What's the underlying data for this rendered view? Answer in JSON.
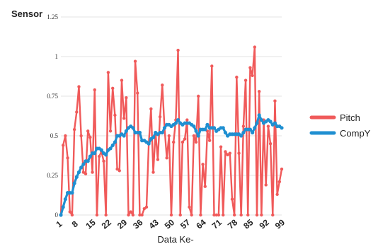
{
  "chart_data": {
    "type": "line",
    "title": "",
    "ylabel": "Sensor",
    "xlabel": "Data Ke-",
    "ylim": [
      0,
      1.25
    ],
    "yticks": [
      "0",
      "0.25",
      "0.5",
      "0.75",
      "1",
      "1.25"
    ],
    "xlim": [
      1,
      99
    ],
    "xticks": [
      "1",
      "8",
      "15",
      "22",
      "29",
      "36",
      "43",
      "50",
      "57",
      "64",
      "71",
      "78",
      "85",
      "92",
      "99"
    ],
    "grid": true,
    "legend_position": "right",
    "series": [
      {
        "name": "Pitch",
        "color": "#f05a5a",
        "x": [
          1,
          2,
          3,
          4,
          5,
          6,
          7,
          8,
          9,
          10,
          11,
          12,
          13,
          14,
          15,
          16,
          17,
          18,
          19,
          20,
          21,
          22,
          23,
          24,
          25,
          26,
          27,
          28,
          29,
          30,
          31,
          32,
          33,
          34,
          35,
          36,
          37,
          38,
          39,
          40,
          41,
          42,
          43,
          44,
          45,
          46,
          47,
          48,
          49,
          50,
          51,
          52,
          53,
          54,
          55,
          56,
          57,
          58,
          59,
          60,
          61,
          62,
          63,
          64,
          65,
          66,
          67,
          68,
          69,
          70,
          71,
          72,
          73,
          74,
          75,
          76,
          77,
          78,
          79,
          80,
          81,
          82,
          83,
          84,
          85,
          86,
          87,
          88,
          89,
          90,
          91,
          92,
          93,
          94,
          95,
          96,
          97,
          98,
          99
        ],
        "values": [
          0.0,
          0.44,
          0.5,
          0.36,
          0.02,
          0.0,
          0.54,
          0.65,
          0.81,
          0.5,
          0.27,
          0.26,
          0.53,
          0.49,
          0.27,
          0.79,
          0.0,
          0.37,
          0.4,
          0.34,
          0.0,
          0.9,
          0.53,
          0.8,
          0.63,
          0.29,
          0.28,
          0.85,
          0.61,
          0.74,
          0.0,
          0.02,
          0.0,
          0.97,
          0.77,
          0.0,
          0.0,
          0.04,
          0.05,
          0.45,
          0.67,
          0.27,
          0.52,
          0.35,
          0.62,
          0.82,
          0.55,
          0.36,
          0.5,
          0.0,
          0.46,
          0.6,
          1.04,
          0.0,
          0.46,
          0.48,
          0.6,
          0.05,
          0.0,
          0.5,
          0.46,
          0.75,
          0.0,
          0.32,
          0.18,
          0.53,
          0.47,
          0.94,
          0.0,
          0.0,
          0.0,
          0.43,
          0.0,
          0.4,
          0.38,
          0.39,
          0.1,
          0.0,
          0.87,
          0.39,
          0.0,
          0.56,
          0.85,
          0.0,
          0.93,
          0.88,
          1.06,
          0.0,
          0.78,
          0.0,
          0.6,
          0.19,
          0.56,
          0.45,
          0.0,
          0.72,
          0.13,
          0.21,
          0.29
        ]
      },
      {
        "name": "CompY",
        "color": "#1f8fd1",
        "x": [
          1,
          2,
          3,
          4,
          5,
          6,
          7,
          8,
          9,
          10,
          11,
          12,
          13,
          14,
          15,
          16,
          17,
          18,
          19,
          20,
          21,
          22,
          23,
          24,
          25,
          26,
          27,
          28,
          29,
          30,
          31,
          32,
          33,
          34,
          35,
          36,
          37,
          38,
          39,
          40,
          41,
          42,
          43,
          44,
          45,
          46,
          47,
          48,
          49,
          50,
          51,
          52,
          53,
          54,
          55,
          56,
          57,
          58,
          59,
          60,
          61,
          62,
          63,
          64,
          65,
          66,
          67,
          68,
          69,
          70,
          71,
          72,
          73,
          74,
          75,
          76,
          77,
          78,
          79,
          80,
          81,
          82,
          83,
          84,
          85,
          86,
          87,
          88,
          89,
          90,
          91,
          92,
          93,
          94,
          95,
          96,
          97,
          98,
          99
        ],
        "values": [
          0.0,
          0.05,
          0.1,
          0.14,
          0.14,
          0.14,
          0.2,
          0.24,
          0.27,
          0.3,
          0.32,
          0.34,
          0.34,
          0.37,
          0.39,
          0.39,
          0.42,
          0.42,
          0.41,
          0.39,
          0.38,
          0.41,
          0.42,
          0.44,
          0.46,
          0.5,
          0.5,
          0.51,
          0.5,
          0.53,
          0.55,
          0.56,
          0.55,
          0.52,
          0.52,
          0.52,
          0.47,
          0.47,
          0.46,
          0.45,
          0.48,
          0.49,
          0.52,
          0.51,
          0.52,
          0.52,
          0.55,
          0.57,
          0.57,
          0.56,
          0.57,
          0.58,
          0.6,
          0.58,
          0.57,
          0.58,
          0.58,
          0.58,
          0.57,
          0.56,
          0.53,
          0.5,
          0.54,
          0.54,
          0.54,
          0.57,
          0.55,
          0.55,
          0.55,
          0.53,
          0.54,
          0.55,
          0.55,
          0.52,
          0.5,
          0.51,
          0.51,
          0.51,
          0.51,
          0.51,
          0.5,
          0.52,
          0.54,
          0.54,
          0.54,
          0.52,
          0.55,
          0.58,
          0.63,
          0.6,
          0.58,
          0.59,
          0.6,
          0.59,
          0.57,
          0.58,
          0.56,
          0.56,
          0.55
        ]
      }
    ]
  }
}
